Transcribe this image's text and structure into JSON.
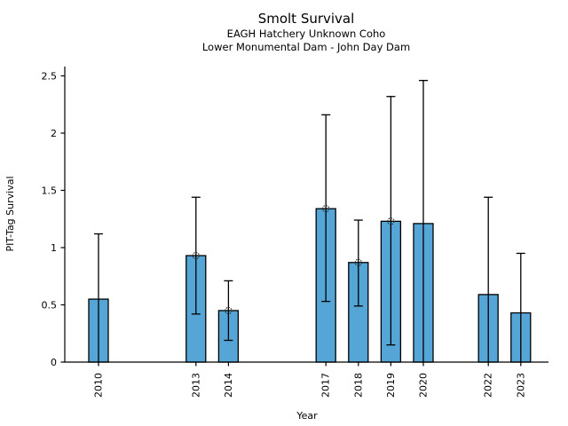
{
  "chart_data": {
    "type": "bar",
    "title": "Smolt Survival",
    "subtitle": [
      "EAGH Hatchery Unknown Coho",
      "Lower Monumental Dam - John Day Dam"
    ],
    "xlabel": "Year",
    "ylabel": "PIT-Tag Survival",
    "ylim": [
      0,
      2.58
    ],
    "yticks": [
      0,
      0.5,
      1,
      1.5,
      2,
      2.5
    ],
    "ytick_labels": [
      "0",
      "0.5",
      "1",
      "1.5",
      "2",
      "2.5"
    ],
    "grid": false,
    "legend": "none",
    "categories": [
      2010,
      2013,
      2014,
      2017,
      2018,
      2019,
      2020,
      2022,
      2023
    ],
    "values": [
      0.55,
      0.93,
      0.45,
      1.34,
      0.87,
      1.23,
      1.21,
      0.59,
      0.43
    ],
    "error_low": [
      0,
      0.42,
      0.19,
      0.53,
      0.49,
      0.15,
      0,
      0,
      0
    ],
    "error_high": [
      1.12,
      1.44,
      0.71,
      2.16,
      1.24,
      2.32,
      2.46,
      1.44,
      0.95
    ],
    "point_marker": [
      false,
      true,
      true,
      true,
      true,
      true,
      false,
      false,
      false
    ],
    "bar_color": "#55A6D6",
    "bar_edge_color": "#000000",
    "error_color": "#000000",
    "marker_edge_color": "#2b2b2b"
  }
}
